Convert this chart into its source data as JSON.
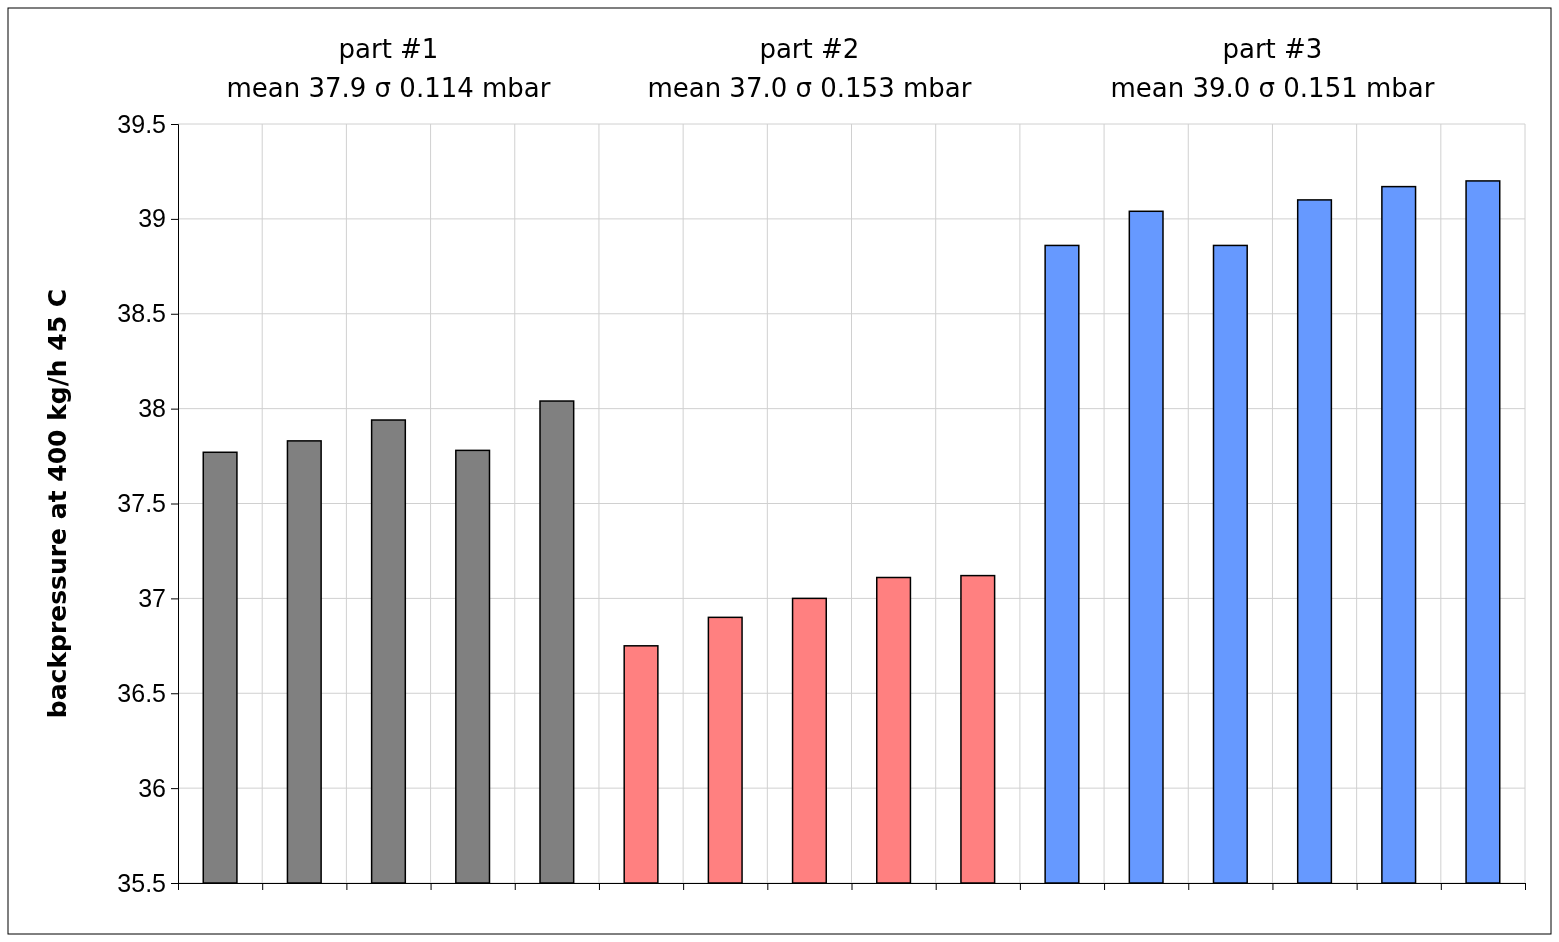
{
  "chart_data": {
    "type": "bar",
    "ylabel": "backpressure at 400 kg/h 45 C",
    "categories": [
      null,
      null,
      null,
      null,
      null,
      null,
      null,
      null,
      null,
      null,
      null,
      null,
      null,
      null,
      null,
      null
    ],
    "series": [
      {
        "color": "#808080",
        "values": [
          37.77,
          37.83,
          37.94,
          37.78,
          38.04,
          null,
          null,
          null,
          null,
          null,
          null,
          null,
          null,
          null,
          null,
          null
        ]
      },
      {
        "color": "#ff8080",
        "values": [
          null,
          null,
          null,
          null,
          null,
          36.75,
          36.9,
          37.0,
          37.11,
          37.12,
          null,
          null,
          null,
          null,
          null,
          null
        ]
      },
      {
        "color": "#6699ff",
        "values": [
          null,
          null,
          null,
          null,
          null,
          null,
          null,
          null,
          null,
          null,
          38.86,
          39.04,
          38.86,
          39.1,
          39.17,
          39.2
        ]
      }
    ],
    "annotations": [
      "part  #1\nmean 37.9 σ 0.114 mbar",
      "part  #2\nmean 37.0 σ 0.153 mbar",
      "part #3\nmean 39.0 σ 0.151 mbar"
    ],
    "ylim": [
      35.5,
      39.5
    ],
    "yticks": [
      {
        "value": 35.5,
        "label": "35.5"
      },
      36,
      {
        "value": 36.5,
        "label": "36.5"
      },
      37,
      {
        "value": 37.5,
        "label": "37.5"
      },
      38,
      {
        "value": 38.5,
        "label": "38.5"
      },
      39,
      {
        "value": 39.5,
        "label": "39.5"
      }
    ],
    "grid": true
  }
}
